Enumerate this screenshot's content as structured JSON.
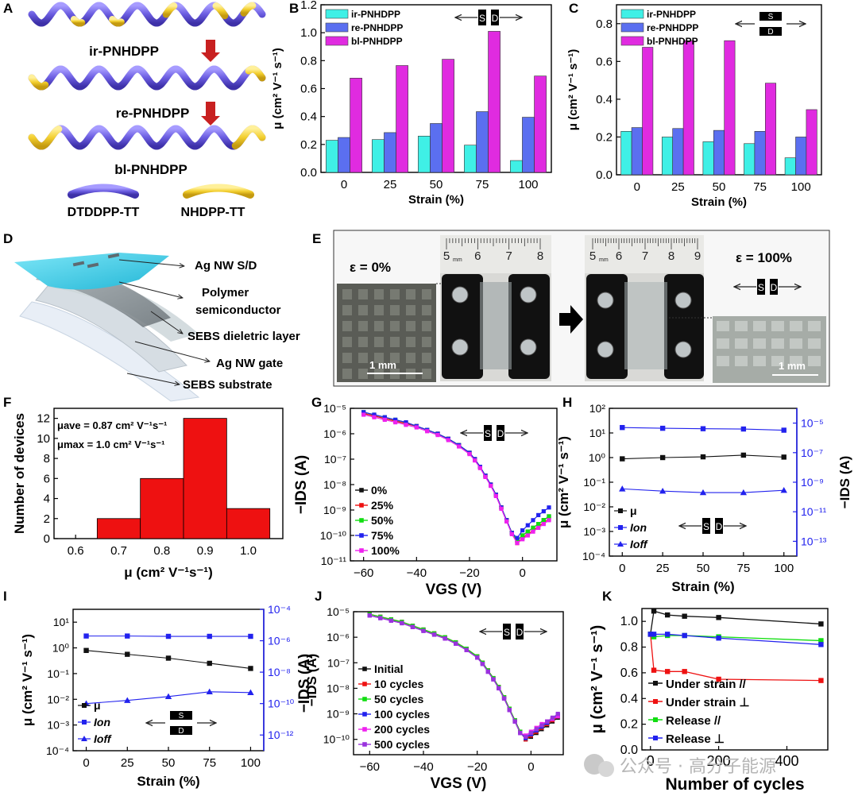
{
  "panel_letters": [
    "A",
    "B",
    "C",
    "D",
    "E",
    "F",
    "G",
    "H",
    "I",
    "J",
    "K"
  ],
  "panel_a": {
    "names": [
      "ir-PNHDPP",
      "re-PNHDPP",
      "bl-PNHDPP"
    ],
    "legend_blue": "DTDDPP-TT",
    "legend_yellow": "NHDPP-TT",
    "colors": {
      "blue": "#6a5ce0",
      "yellow": "#f3cf2f"
    }
  },
  "sd": {
    "s": "S",
    "d": "D"
  },
  "panel_d": {
    "labels": [
      "Ag NW  S/D",
      "Polymer",
      "semiconductor",
      "SEBS dieletric layer",
      "Ag NW gate",
      "SEBS substrate"
    ]
  },
  "panel_e": {
    "eps0": "ε = 0%",
    "eps100": "ε = 100%",
    "scale": "1 mm",
    "ruler_left": [
      "5",
      "6",
      "7",
      "8"
    ],
    "ruler_right": [
      "5",
      "6",
      "7",
      "8",
      "9"
    ],
    "ruler_unit": "mm"
  },
  "watermark": "公众号 · 高分子能源",
  "chart_data": [
    {
      "panel": "B",
      "type": "bar",
      "categories": [
        "0",
        "25",
        "50",
        "75",
        "100"
      ],
      "xlabel": "Strain (%)",
      "ylabel": "μ (cm² V⁻¹ s⁻¹)",
      "ylim": [
        0,
        1.2
      ],
      "yticks": [
        "0.0",
        "0.2",
        "0.4",
        "0.6",
        "0.8",
        "1.0",
        "1.2"
      ],
      "legend": "top-left",
      "series": [
        {
          "name": "ir-PNHDPP",
          "color": "#3ff0e6",
          "values": [
            0.23,
            0.235,
            0.26,
            0.195,
            0.085
          ]
        },
        {
          "name": "re-PNHDPP",
          "color": "#5b6ff0",
          "values": [
            0.25,
            0.285,
            0.35,
            0.435,
            0.395
          ]
        },
        {
          "name": "bl-PNHDPP",
          "color": "#e02be0",
          "values": [
            0.675,
            0.765,
            0.81,
            1.01,
            0.69
          ]
        }
      ]
    },
    {
      "panel": "C",
      "type": "bar",
      "categories": [
        "0",
        "25",
        "50",
        "75",
        "100"
      ],
      "xlabel": "Strain (%)",
      "ylabel": "μ (cm² V⁻¹ s⁻¹)",
      "ylim": [
        0,
        0.9
      ],
      "yticks": [
        "0.0",
        "0.2",
        "0.4",
        "0.6",
        "0.8"
      ],
      "legend": "top-left",
      "series": [
        {
          "name": "ir-PNHDPP",
          "color": "#3ff0e6",
          "values": [
            0.23,
            0.2,
            0.175,
            0.165,
            0.09
          ]
        },
        {
          "name": "re-PNHDPP",
          "color": "#5b6ff0",
          "values": [
            0.25,
            0.245,
            0.235,
            0.23,
            0.2
          ]
        },
        {
          "name": "bl-PNHDPP",
          "color": "#e02be0",
          "values": [
            0.675,
            0.71,
            0.71,
            0.485,
            0.345
          ]
        }
      ]
    },
    {
      "panel": "F",
      "type": "bar",
      "xlabel": "μ (cm² V⁻¹s⁻¹)",
      "ylabel": "Number of devices",
      "xlim": [
        0.55,
        1.08
      ],
      "ylim": [
        0,
        13
      ],
      "xticks": [
        "0.6",
        "0.7",
        "0.8",
        "0.9",
        "1.0"
      ],
      "yticks": [
        "0",
        "2",
        "4",
        "6",
        "8",
        "10",
        "12"
      ],
      "bins": [
        {
          "from": 0.65,
          "to": 0.75,
          "count": 2
        },
        {
          "from": 0.75,
          "to": 0.85,
          "count": 6
        },
        {
          "from": 0.85,
          "to": 0.95,
          "count": 12
        },
        {
          "from": 0.95,
          "to": 1.05,
          "count": 3
        }
      ],
      "color": "#ee1111",
      "annotations": [
        "μave = 0.87 cm² V⁻¹s⁻¹",
        "μmax = 1.0 cm² V⁻¹s⁻¹"
      ]
    },
    {
      "panel": "G",
      "type": "line",
      "scale_y": "log",
      "xlabel": "VGS (V)",
      "ylabel": "−IDS (A)",
      "xlim": [
        -65,
        13
      ],
      "ylim": [
        1e-11,
        1e-05
      ],
      "xticks": [
        "−60",
        "−40",
        "−20",
        "0"
      ],
      "yticks": [
        "10⁻¹¹",
        "10⁻¹⁰",
        "10⁻⁹",
        "10⁻⁸",
        "10⁻⁷",
        "10⁻⁶",
        "10⁻⁵"
      ],
      "legend": "bottom-left",
      "x": [
        -60,
        -56,
        -52,
        -48,
        -44,
        -40,
        -36,
        -32,
        -28,
        -24,
        -20,
        -18,
        -16,
        -14,
        -12,
        -10,
        -8,
        -6,
        -4,
        -2,
        0,
        2,
        4,
        6,
        8,
        10
      ],
      "series": [
        {
          "name": "0%",
          "color": "#111111",
          "yexp": [
            -5.2,
            -5.3,
            -5.4,
            -5.5,
            -5.6,
            -5.7,
            -5.85,
            -6.0,
            -6.2,
            -6.45,
            -6.75,
            -7.0,
            -7.3,
            -7.65,
            -8.0,
            -8.4,
            -8.9,
            -9.4,
            -9.9,
            -10.2,
            -10.0,
            -9.85,
            -9.7,
            -9.55,
            -9.4,
            -9.25
          ]
        },
        {
          "name": "25%",
          "color": "#ee1111",
          "yexp": [
            -5.2,
            -5.3,
            -5.4,
            -5.5,
            -5.6,
            -5.7,
            -5.85,
            -6.0,
            -6.2,
            -6.45,
            -6.75,
            -7.0,
            -7.3,
            -7.65,
            -8.0,
            -8.4,
            -8.9,
            -9.4,
            -9.9,
            -10.3,
            -10.1,
            -9.95,
            -9.8,
            -9.65,
            -9.5,
            -9.35
          ]
        },
        {
          "name": "50%",
          "color": "#11dd11",
          "yexp": [
            -5.15,
            -5.25,
            -5.35,
            -5.45,
            -5.55,
            -5.7,
            -5.85,
            -6.0,
            -6.2,
            -6.45,
            -6.75,
            -7.0,
            -7.3,
            -7.65,
            -8.0,
            -8.4,
            -8.9,
            -9.4,
            -9.9,
            -10.2,
            -10.0,
            -9.85,
            -9.7,
            -9.55,
            -9.4,
            -9.25
          ]
        },
        {
          "name": "75%",
          "color": "#2222ee",
          "yexp": [
            -5.15,
            -5.25,
            -5.35,
            -5.45,
            -5.55,
            -5.7,
            -5.85,
            -6.0,
            -6.2,
            -6.45,
            -6.75,
            -7.0,
            -7.3,
            -7.65,
            -8.0,
            -8.4,
            -8.9,
            -9.4,
            -9.9,
            -10.1,
            -9.8,
            -9.6,
            -9.4,
            -9.2,
            -9.05,
            -8.9
          ]
        },
        {
          "name": "100%",
          "color": "#ee22ee",
          "yexp": [
            -5.25,
            -5.35,
            -5.45,
            -5.55,
            -5.65,
            -5.75,
            -5.9,
            -6.05,
            -6.25,
            -6.5,
            -6.8,
            -7.05,
            -7.35,
            -7.7,
            -8.05,
            -8.45,
            -8.95,
            -9.45,
            -9.95,
            -10.3,
            -10.15,
            -10.0,
            -9.85,
            -9.7,
            -9.55,
            -9.4
          ]
        }
      ]
    },
    {
      "panel": "H",
      "type": "line",
      "scale_y": "log",
      "xlabel": "Strain (%)",
      "ylabel": "μ (cm² V⁻¹ s⁻¹)",
      "ylabel_right": "−IDS (A)",
      "xlim": [
        -8,
        108
      ],
      "ylim": [
        0.0001,
        100
      ],
      "ylim_right": [
        1e-14,
        0.0001
      ],
      "xticks": [
        "0",
        "25",
        "50",
        "75",
        "100"
      ],
      "yticks": [
        "10⁻⁴",
        "10⁻³",
        "10⁻²",
        "10⁻¹",
        "10⁰",
        "10¹",
        "10²"
      ],
      "yticks_right": [
        "10⁻¹³",
        "10⁻¹¹",
        "10⁻⁹",
        "10⁻⁷",
        "10⁻⁵"
      ],
      "legend": "bottom-left",
      "x": [
        0,
        25,
        50,
        75,
        100
      ],
      "series": [
        {
          "name": "μ",
          "axis": "left",
          "color": "#111111",
          "marker": "square",
          "yexp": [
            -0.05,
            0.0,
            0.03,
            0.1,
            0.02
          ]
        },
        {
          "name": "Ion",
          "axis": "right",
          "color": "#2222ee",
          "marker": "square",
          "yexp": [
            -5.3,
            -5.35,
            -5.38,
            -5.4,
            -5.48
          ]
        },
        {
          "name": "Ioff",
          "axis": "right",
          "color": "#2222ee",
          "marker": "triangle",
          "yexp": [
            -9.45,
            -9.6,
            -9.7,
            -9.7,
            -9.55
          ]
        }
      ]
    },
    {
      "panel": "I",
      "type": "line",
      "scale_y": "log",
      "xlabel": "Strain (%)",
      "ylabel": "μ (cm² V⁻¹ s⁻¹)",
      "ylabel_right": "−IDS (A)",
      "xlim": [
        -8,
        108
      ],
      "ylim": [
        0.0001,
        30
      ],
      "ylim_right": [
        1e-13,
        0.0001
      ],
      "xticks": [
        "0",
        "25",
        "50",
        "75",
        "100"
      ],
      "yticks": [
        "10⁻⁴",
        "10⁻³",
        "10⁻²",
        "10⁻¹",
        "10⁰",
        "10¹"
      ],
      "yticks_right": [
        "10⁻¹²",
        "10⁻¹⁰",
        "10⁻⁸",
        "10⁻⁶",
        "10⁻⁴"
      ],
      "legend": "bottom-left",
      "x": [
        0,
        25,
        50,
        75,
        100
      ],
      "series": [
        {
          "name": "μ",
          "axis": "left",
          "color": "#111111",
          "marker": "square",
          "yexp": [
            -0.1,
            -0.25,
            -0.4,
            -0.6,
            -0.8
          ]
        },
        {
          "name": "Ion",
          "axis": "right",
          "color": "#2222ee",
          "marker": "square",
          "yexp": [
            -5.7,
            -5.7,
            -5.72,
            -5.72,
            -5.72
          ]
        },
        {
          "name": "Ioff",
          "axis": "right",
          "color": "#2222ee",
          "marker": "triangle",
          "yexp": [
            -10.0,
            -9.8,
            -9.55,
            -9.25,
            -9.3
          ]
        }
      ]
    },
    {
      "panel": "J",
      "type": "line",
      "scale_y": "log",
      "xlabel": "VGS (V)",
      "ylabel": "−IDS (A)",
      "xlim": [
        -66,
        12
      ],
      "ylim": [
        2e-11,
        1e-05
      ],
      "xticks": [
        "−60",
        "−40",
        "−20",
        "0"
      ],
      "yticks": [
        "10⁻¹⁰",
        "10⁻⁹",
        "10⁻⁸",
        "10⁻⁷",
        "10⁻⁶",
        "10⁻⁵"
      ],
      "legend": "bottom-left",
      "x": [
        -60,
        -56,
        -52,
        -48,
        -44,
        -40,
        -36,
        -32,
        -28,
        -24,
        -20,
        -18,
        -16,
        -14,
        -12,
        -10,
        -8,
        -6,
        -4,
        -2,
        0,
        2,
        4,
        6,
        8,
        10
      ],
      "series": [
        {
          "name": "Initial",
          "color": "#111111",
          "yexp": [
            -5.1,
            -5.2,
            -5.3,
            -5.4,
            -5.55,
            -5.7,
            -5.85,
            -6.0,
            -6.2,
            -6.45,
            -6.75,
            -7.0,
            -7.3,
            -7.6,
            -7.95,
            -8.35,
            -8.8,
            -9.25,
            -9.7,
            -10.0,
            -9.9,
            -9.75,
            -9.6,
            -9.45,
            -9.3,
            -9.15
          ]
        },
        {
          "name": "10 cycles",
          "color": "#ee1111",
          "yexp": [
            -5.1,
            -5.2,
            -5.3,
            -5.4,
            -5.55,
            -5.7,
            -5.85,
            -6.0,
            -6.2,
            -6.45,
            -6.75,
            -7.0,
            -7.3,
            -7.6,
            -7.95,
            -8.35,
            -8.8,
            -9.25,
            -9.7,
            -10.0,
            -9.85,
            -9.7,
            -9.55,
            -9.4,
            -9.25,
            -9.1
          ]
        },
        {
          "name": "50 cycles",
          "color": "#11dd11",
          "yexp": [
            -5.1,
            -5.2,
            -5.3,
            -5.4,
            -5.55,
            -5.7,
            -5.85,
            -6.0,
            -6.2,
            -6.45,
            -6.75,
            -7.0,
            -7.3,
            -7.6,
            -7.95,
            -8.35,
            -8.8,
            -9.25,
            -9.7,
            -9.95,
            -9.8,
            -9.65,
            -9.5,
            -9.35,
            -9.2,
            -9.05
          ]
        },
        {
          "name": "100 cycles",
          "color": "#2222ee",
          "yexp": [
            -5.15,
            -5.25,
            -5.35,
            -5.45,
            -5.6,
            -5.75,
            -5.9,
            -6.05,
            -6.25,
            -6.5,
            -6.8,
            -7.05,
            -7.35,
            -7.65,
            -8.0,
            -8.4,
            -8.85,
            -9.3,
            -9.75,
            -9.95,
            -9.8,
            -9.65,
            -9.5,
            -9.35,
            -9.2,
            -9.05
          ]
        },
        {
          "name": "200 cycles",
          "color": "#ee22ee",
          "yexp": [
            -5.15,
            -5.25,
            -5.35,
            -5.45,
            -5.6,
            -5.75,
            -5.9,
            -6.05,
            -6.25,
            -6.5,
            -6.8,
            -7.05,
            -7.35,
            -7.65,
            -8.0,
            -8.4,
            -8.85,
            -9.3,
            -9.75,
            -9.85,
            -9.7,
            -9.55,
            -9.4,
            -9.3,
            -9.2,
            -9.1
          ]
        },
        {
          "name": "500 cycles",
          "color": "#9933dd",
          "yexp": [
            -5.15,
            -5.25,
            -5.35,
            -5.45,
            -5.6,
            -5.75,
            -5.9,
            -6.05,
            -6.25,
            -6.5,
            -6.8,
            -7.05,
            -7.35,
            -7.65,
            -8.0,
            -8.4,
            -8.85,
            -9.3,
            -9.75,
            -9.9,
            -9.75,
            -9.6,
            -9.45,
            -9.3,
            -9.15,
            -9.0
          ]
        }
      ]
    },
    {
      "panel": "K",
      "type": "line",
      "xlabel": "Number of cycles",
      "ylabel": "μ (cm² V⁻¹ s⁻¹)",
      "xlim": [
        -25,
        520
      ],
      "ylim": [
        0,
        1.1
      ],
      "xticks": [
        "0",
        "200",
        "400"
      ],
      "yticks": [
        "0.0",
        "0.2",
        "0.4",
        "0.6",
        "0.8",
        "1.0"
      ],
      "legend": "bottom-left",
      "x": [
        0,
        10,
        50,
        100,
        200,
        500
      ],
      "series": [
        {
          "name": "Under strain //",
          "color": "#111111",
          "values": [
            0.9,
            1.08,
            1.05,
            1.04,
            1.03,
            0.98
          ]
        },
        {
          "name": "Under strain ⊥",
          "color": "#ee1111",
          "values": [
            0.9,
            0.62,
            0.61,
            0.61,
            0.55,
            0.54
          ]
        },
        {
          "name": "Release //",
          "color": "#11dd11",
          "values": [
            0.9,
            0.88,
            0.89,
            0.89,
            0.88,
            0.85
          ]
        },
        {
          "name": "Release ⊥",
          "color": "#2222ee",
          "values": [
            0.9,
            0.9,
            0.9,
            0.89,
            0.87,
            0.82
          ]
        }
      ]
    }
  ]
}
